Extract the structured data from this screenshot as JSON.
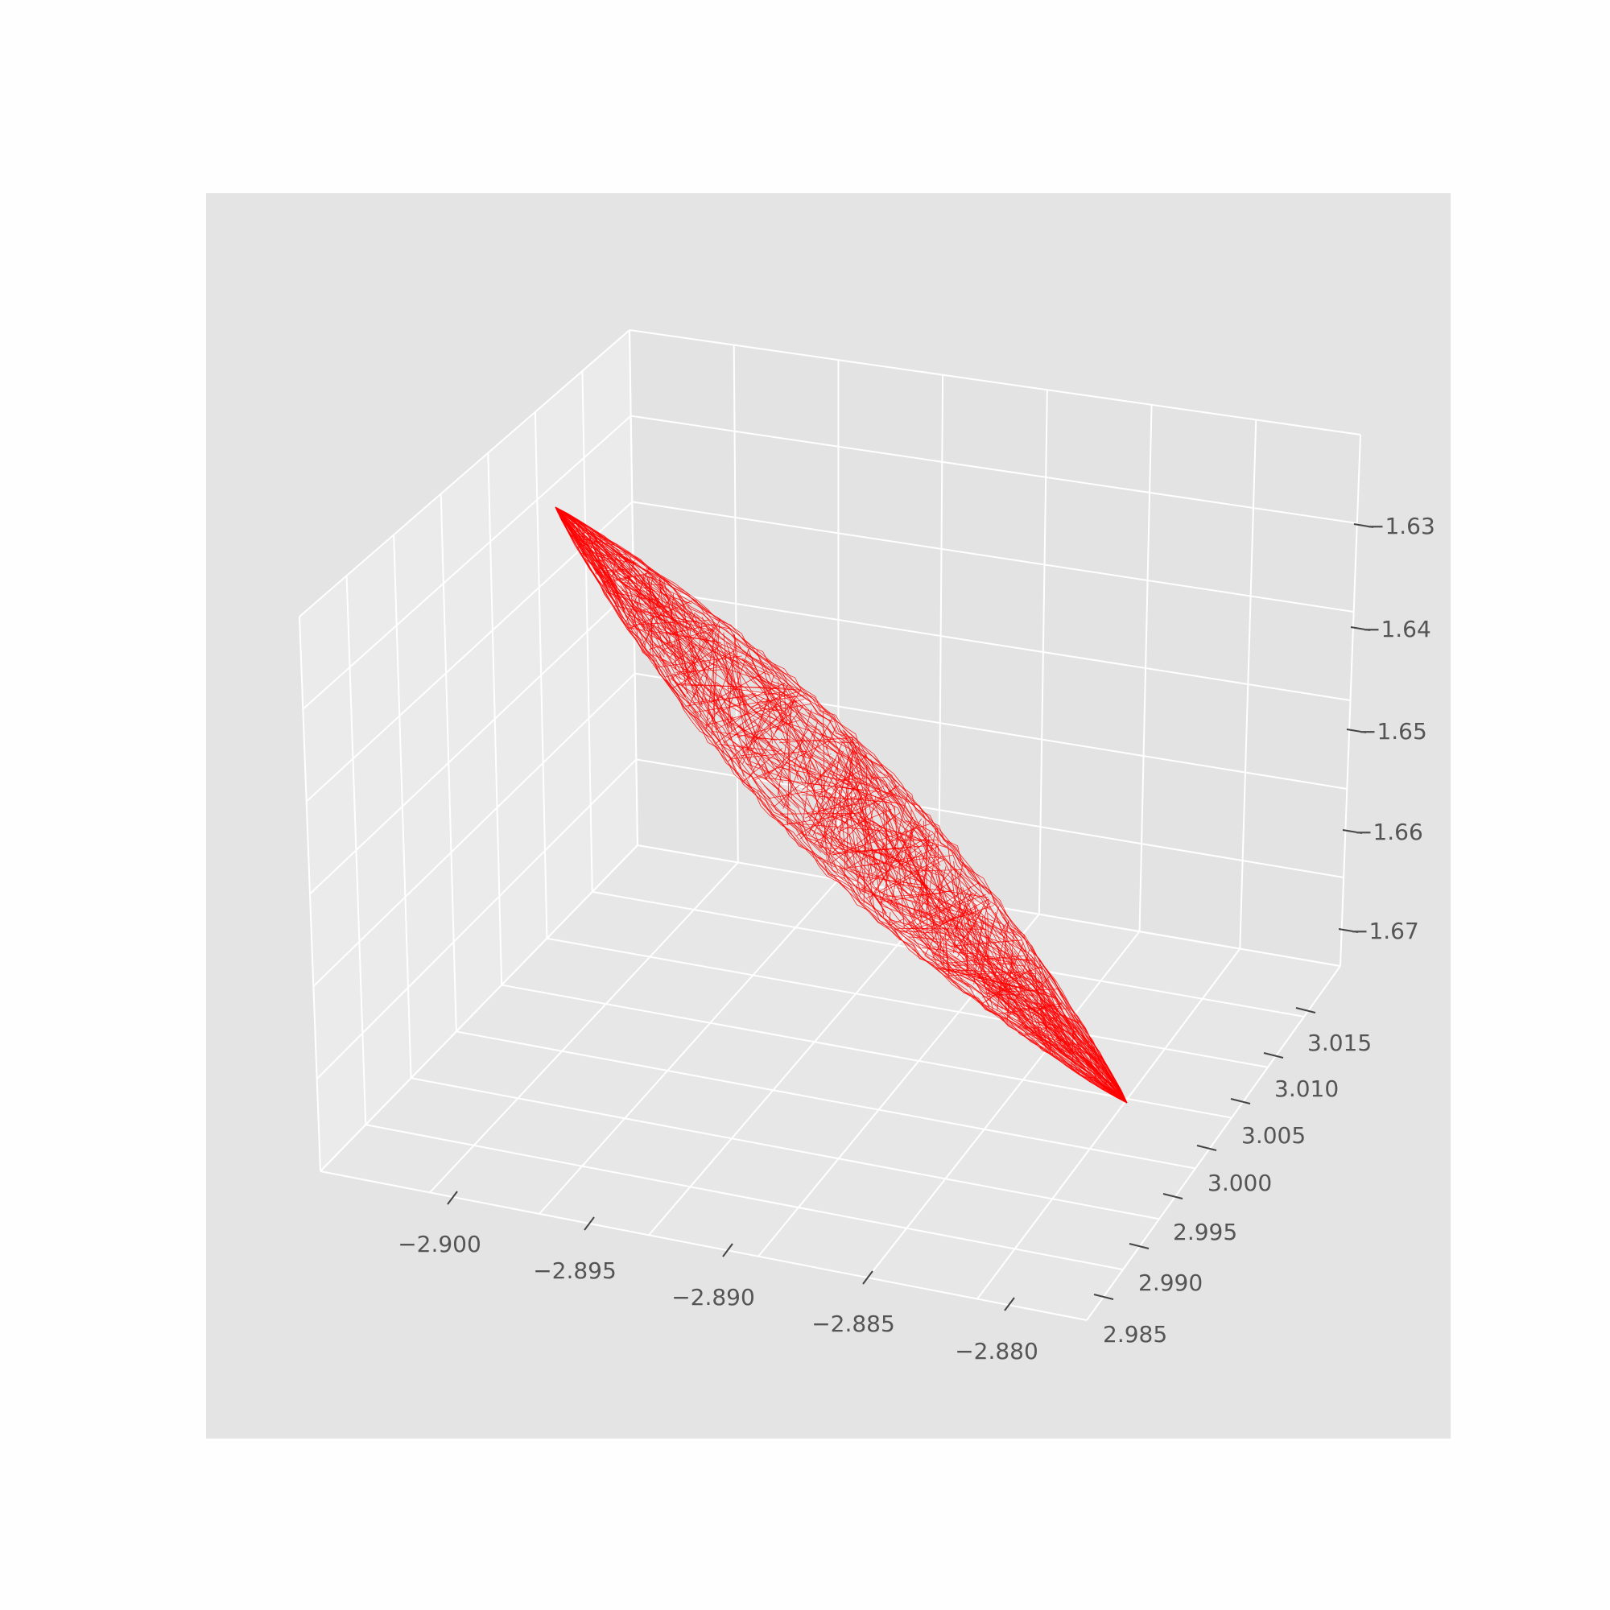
{
  "chart_data": {
    "type": "surface3d-wireframe",
    "title": "",
    "x_axis": {
      "label": "",
      "ticks": [
        -2.9,
        -2.895,
        -2.89,
        -2.885,
        -2.88
      ],
      "tick_labels": [
        "−2.900",
        "−2.895",
        "−2.890",
        "−2.885",
        "−2.880"
      ]
    },
    "y_axis": {
      "label": "",
      "ticks": [
        2.985,
        2.99,
        2.995,
        3.0,
        3.005,
        3.01,
        3.015
      ],
      "tick_labels": [
        "2.985",
        "2.990",
        "2.995",
        "3.000",
        "3.005",
        "3.010",
        "3.015"
      ]
    },
    "z_axis": {
      "label": "",
      "ticks": [
        -1.63,
        -1.64,
        -1.65,
        -1.66,
        -1.67
      ],
      "tick_labels": [
        "−1.63",
        "−1.64",
        "−1.65",
        "−1.66",
        "−1.67"
      ]
    },
    "surface": {
      "shape": "elongated ellipsoid wireframe",
      "color": "#ff0000",
      "end_a": {
        "x": -2.9,
        "y": 3.014,
        "z": -1.627
      },
      "end_b": {
        "x": -2.878,
        "y": 2.993,
        "z": -1.676
      }
    },
    "pane_color": "#e5e5e5",
    "grid": true
  }
}
